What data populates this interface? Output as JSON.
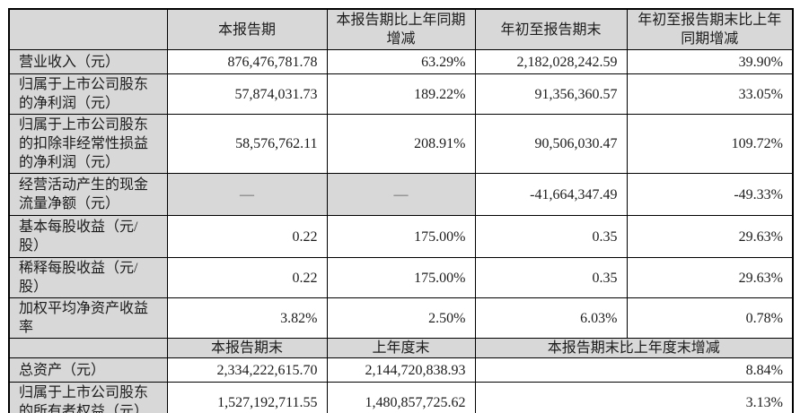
{
  "colors": {
    "shade_bg": "#d8d8d8",
    "border": "#000000",
    "text": "#1c1c1c",
    "page_bg": "#ffffff"
  },
  "section1": {
    "col_headers": [
      "本报告期",
      "本报告期比上年同期增减",
      "年初至报告期末",
      "年初至报告期末比上年同期增减"
    ],
    "rows": [
      {
        "label": "营业收入（元）",
        "values": [
          "876,476,781.78",
          "63.29%",
          "2,182,028,242.59",
          "39.90%"
        ]
      },
      {
        "label": "归属于上市公司股东的净利润（元）",
        "values": [
          "57,874,031.73",
          "189.22%",
          "91,356,360.57",
          "33.05%"
        ]
      },
      {
        "label": "归属于上市公司股东的扣除非经常性损益的净利润（元）",
        "values": [
          "58,576,762.11",
          "208.91%",
          "90,506,030.47",
          "109.72%"
        ]
      },
      {
        "label": "经营活动产生的现金流量净额（元）",
        "values": [
          "—",
          "—",
          "-41,664,347.49",
          "-49.33%"
        ]
      },
      {
        "label": "基本每股收益（元/股）",
        "values": [
          "0.22",
          "175.00%",
          "0.35",
          "29.63%"
        ]
      },
      {
        "label": "稀释每股收益（元/股）",
        "values": [
          "0.22",
          "175.00%",
          "0.35",
          "29.63%"
        ]
      },
      {
        "label": "加权平均净资产收益率",
        "values": [
          "3.82%",
          "2.50%",
          "6.03%",
          "0.78%"
        ]
      }
    ]
  },
  "section2": {
    "col_headers": [
      "本报告期末",
      "上年度末",
      "本报告期末比上年度末增减"
    ],
    "rows": [
      {
        "label": "总资产（元）",
        "values": [
          "2,334,222,615.70",
          "2,144,720,838.93",
          "8.84%"
        ]
      },
      {
        "label": "归属于上市公司股东的所有者权益（元）",
        "values": [
          "1,527,192,711.55",
          "1,480,857,725.62",
          "3.13%"
        ]
      }
    ]
  }
}
